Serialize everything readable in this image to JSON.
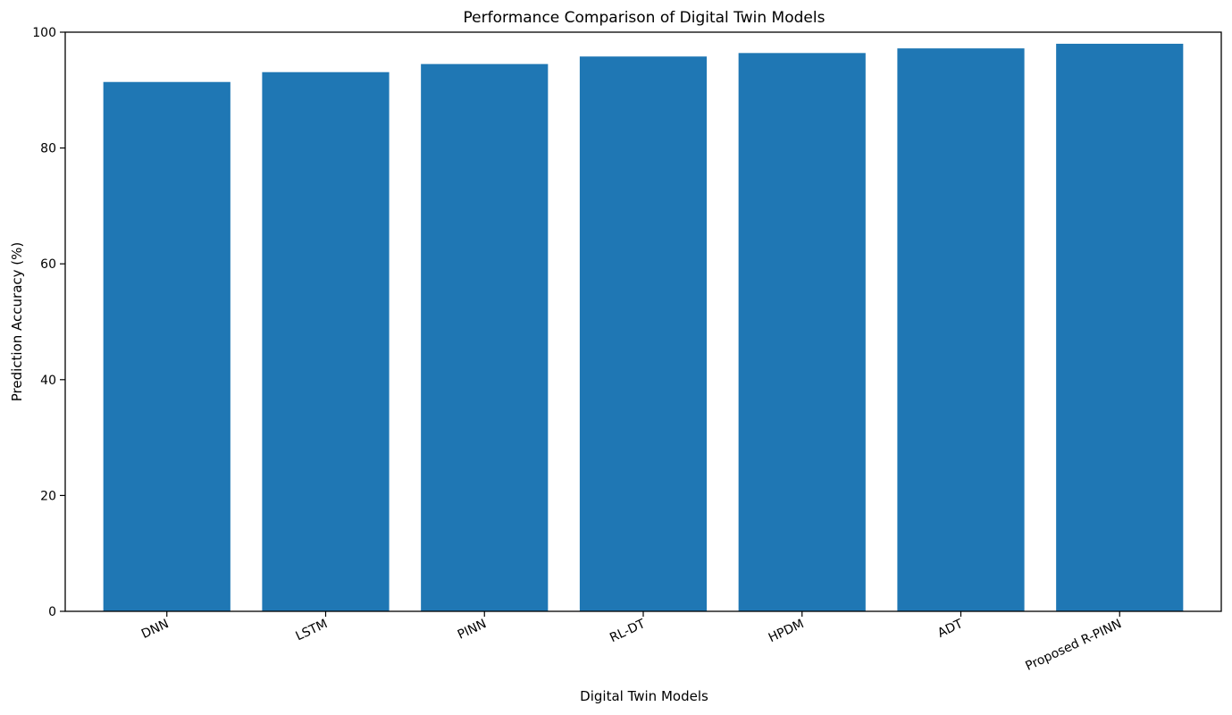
{
  "chart_data": {
    "type": "bar",
    "title": "Performance Comparison of Digital Twin Models",
    "xlabel": "Digital Twin Models",
    "ylabel": "Prediction Accuracy (%)",
    "categories": [
      "DNN",
      "LSTM",
      "PINN",
      "RL-DT",
      "HPDM",
      "ADT",
      "Proposed R-PINN"
    ],
    "values": [
      91.4,
      93.1,
      94.5,
      95.8,
      96.4,
      97.2,
      98.0
    ],
    "ylim": [
      0,
      100
    ],
    "yticks": [
      0,
      20,
      40,
      60,
      80,
      100
    ],
    "grid": false,
    "bar_color": "#1f77b4"
  }
}
